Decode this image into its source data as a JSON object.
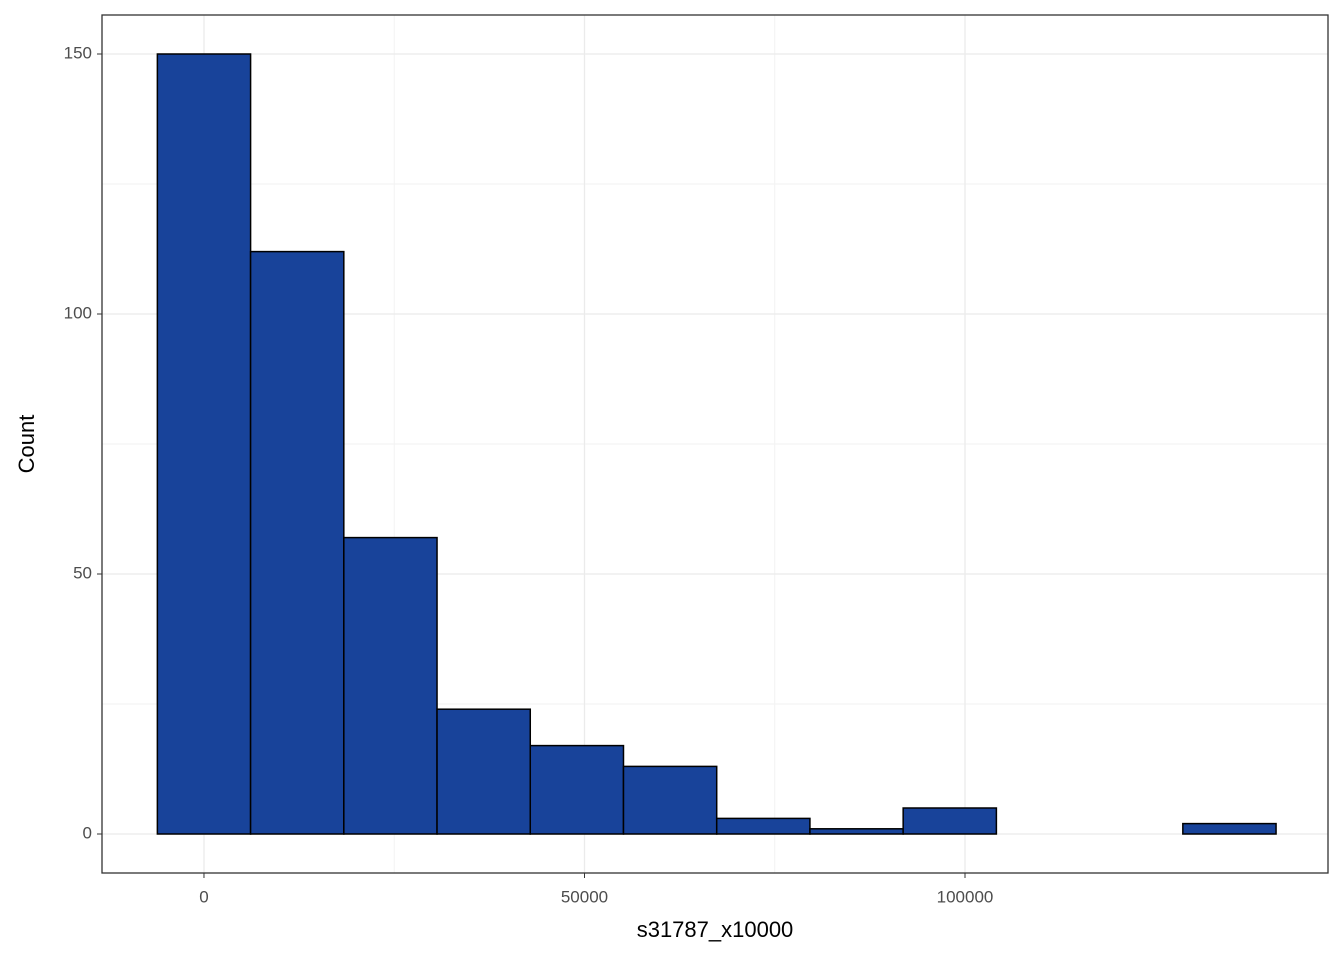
{
  "chart_data": {
    "type": "histogram",
    "x_label": "s31787_x10000",
    "y_label": "Count",
    "bins": [
      -6125,
      6125,
      18375,
      30625,
      42875,
      55125,
      67375,
      79625,
      91875,
      104125,
      116375,
      128625,
      140875
    ],
    "counts": [
      150,
      112,
      57,
      24,
      17,
      13,
      3,
      1,
      5,
      0,
      0,
      2
    ],
    "color": "#18439a",
    "xlim": [
      -13400,
      147700
    ],
    "ylim": [
      -7.5,
      157.5
    ],
    "xticks": [
      0,
      50000,
      100000
    ],
    "yticks": [
      0,
      50,
      100,
      150
    ],
    "grid": true
  }
}
